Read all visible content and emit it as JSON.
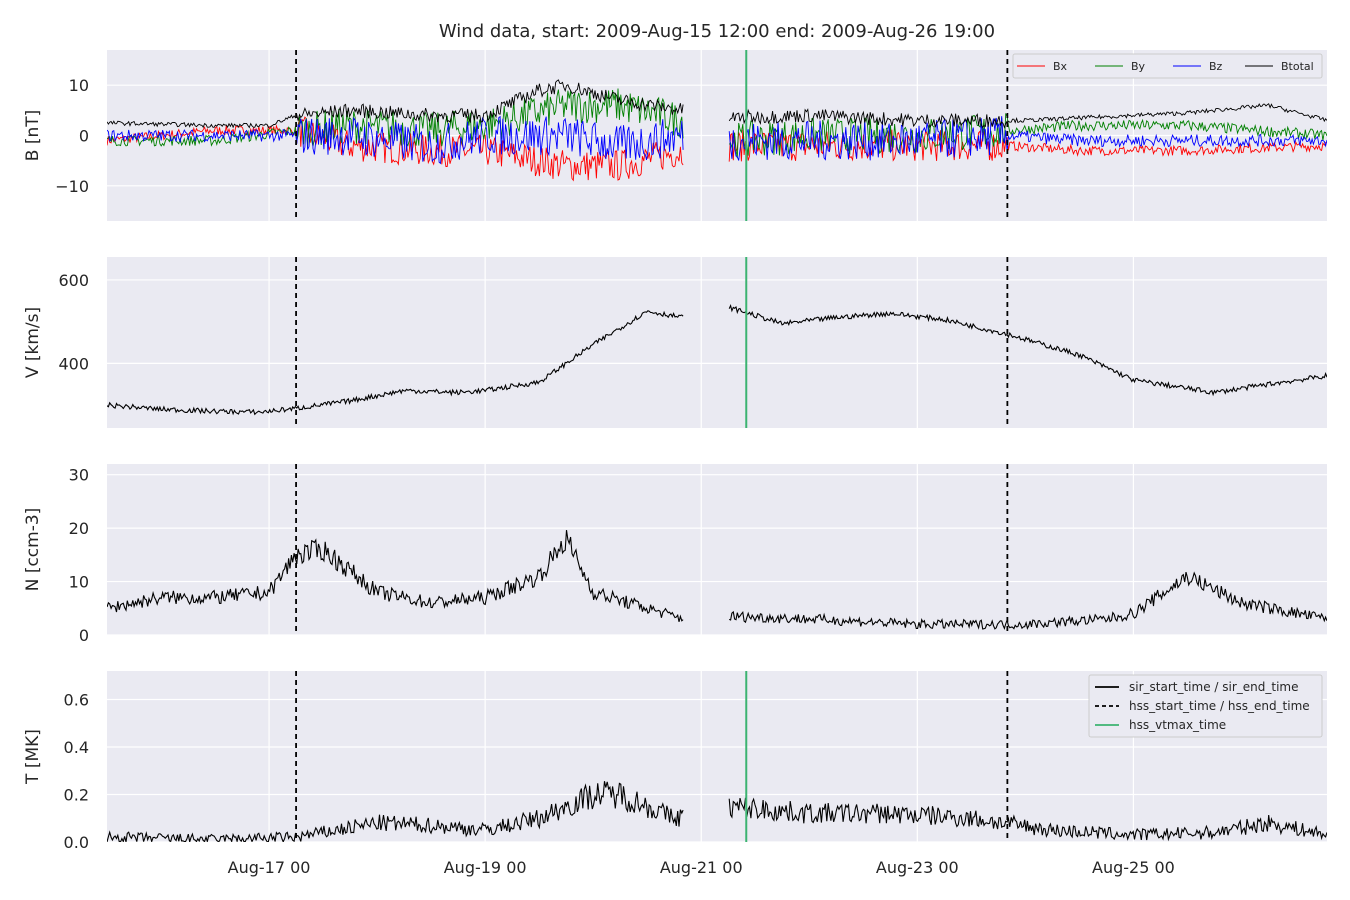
{
  "figure": {
    "title": "Wind data, start: 2009-Aug-15 12:00  end: 2009-Aug-26 19:00",
    "x_tick_labels": [
      "Aug-17 00",
      "Aug-19 00",
      "Aug-21 00",
      "Aug-23 00",
      "Aug-25 00"
    ]
  },
  "legend_top": [
    "Bx",
    "By",
    "Bz",
    "Btotal"
  ],
  "legend_bottom": [
    "sir_start_time / sir_end_time",
    "hss_start_time / hss_end_time",
    "hss_vtmax_time"
  ],
  "colors": {
    "Bx": "#ff0000",
    "By": "#008000",
    "Bz": "#0000ff",
    "Btotal": "#000000",
    "vtmax": "#3cb371",
    "axes_bg": "#eaeaf2",
    "grid": "#ffffff"
  },
  "chart_data": [
    {
      "type": "line",
      "panel": "B",
      "ylabel": "B [nT]",
      "ylim": [
        -17,
        17
      ],
      "yticks": [
        -10,
        0,
        10
      ],
      "y_tick_labels": [
        "−10",
        "0",
        "10"
      ],
      "x_range": [
        "2009-08-15 12:00",
        "2009-08-26 19:00"
      ],
      "data_gap": [
        "2009-08-20 20:00",
        "2009-08-21 06:00"
      ],
      "series": [
        {
          "name": "Bx",
          "x": [
            "2009-08-15 12:00",
            "2009-08-16 12:00",
            "2009-08-17 06:00",
            "2009-08-17 18:00",
            "2009-08-18 12:00",
            "2009-08-19 00:00",
            "2009-08-19 18:00",
            "2009-08-20 06:00",
            "2009-08-20 20:00",
            "2009-08-21 06:00",
            "2009-08-22 00:00",
            "2009-08-23 00:00",
            "2009-08-23 20:00",
            "2009-08-24 12:00",
            "2009-08-25 12:00",
            "2009-08-26 19:00"
          ],
          "values": [
            -1,
            1,
            1,
            -2,
            -3,
            -3,
            -6,
            -6,
            -3,
            -2,
            -2,
            -2,
            -2,
            -3,
            -3,
            -2
          ]
        },
        {
          "name": "By",
          "x": [
            "2009-08-15 12:00",
            "2009-08-16 12:00",
            "2009-08-17 06:00",
            "2009-08-17 18:00",
            "2009-08-18 12:00",
            "2009-08-19 00:00",
            "2009-08-19 18:00",
            "2009-08-20 06:00",
            "2009-08-20 20:00",
            "2009-08-21 06:00",
            "2009-08-22 00:00",
            "2009-08-23 00:00",
            "2009-08-23 20:00",
            "2009-08-24 12:00",
            "2009-08-25 12:00",
            "2009-08-26 19:00"
          ],
          "values": [
            -1,
            -1,
            1,
            2,
            1,
            2,
            6,
            6,
            3,
            -1,
            0,
            0,
            1,
            2,
            2,
            0
          ]
        },
        {
          "name": "Bz",
          "x": [
            "2009-08-15 12:00",
            "2009-08-16 12:00",
            "2009-08-17 06:00",
            "2009-08-17 18:00",
            "2009-08-18 12:00",
            "2009-08-19 00:00",
            "2009-08-19 18:00",
            "2009-08-20 06:00",
            "2009-08-20 20:00",
            "2009-08-21 06:00",
            "2009-08-22 00:00",
            "2009-08-23 00:00",
            "2009-08-23 20:00",
            "2009-08-24 12:00",
            "2009-08-25 12:00",
            "2009-08-26 19:00"
          ],
          "values": [
            0,
            0,
            0,
            0,
            -2,
            0,
            0,
            -2,
            0,
            -1,
            -1,
            -1,
            0,
            -1,
            -1,
            -1
          ]
        },
        {
          "name": "Btotal",
          "x": [
            "2009-08-15 12:00",
            "2009-08-16 12:00",
            "2009-08-17 00:00",
            "2009-08-17 06:00",
            "2009-08-17 18:00",
            "2009-08-18 12:00",
            "2009-08-19 00:00",
            "2009-08-19 12:00",
            "2009-08-19 18:00",
            "2009-08-20 06:00",
            "2009-08-20 20:00",
            "2009-08-21 06:00",
            "2009-08-22 00:00",
            "2009-08-23 00:00",
            "2009-08-24 00:00",
            "2009-08-25 12:00",
            "2009-08-26 06:00",
            "2009-08-26 19:00"
          ],
          "values": [
            2.5,
            2,
            2,
            4,
            5,
            4,
            4,
            9,
            10,
            7,
            5,
            3.5,
            4,
            3,
            3,
            4.5,
            6,
            3
          ]
        }
      ]
    },
    {
      "type": "line",
      "panel": "V",
      "ylabel": "V [km/s]",
      "ylim": [
        245,
        655
      ],
      "yticks": [
        400,
        600
      ],
      "y_tick_labels": [
        "400",
        "600"
      ],
      "data_gap": [
        "2009-08-20 20:00",
        "2009-08-21 06:00"
      ],
      "series": [
        {
          "name": "",
          "x": [
            "2009-08-15 12:00",
            "2009-08-16 00:00",
            "2009-08-16 12:00",
            "2009-08-16 22:00",
            "2009-08-17 06:00",
            "2009-08-17 18:00",
            "2009-08-18 06:00",
            "2009-08-18 18:00",
            "2009-08-19 00:00",
            "2009-08-19 12:00",
            "2009-08-20 00:00",
            "2009-08-20 12:00",
            "2009-08-20 20:00",
            "2009-08-21 06:00",
            "2009-08-21 18:00",
            "2009-08-22 06:00",
            "2009-08-22 18:00",
            "2009-08-23 06:00",
            "2009-08-23 20:00",
            "2009-08-24 12:00",
            "2009-08-25 00:00",
            "2009-08-25 18:00",
            "2009-08-26 06:00",
            "2009-08-26 19:00"
          ],
          "values": [
            300,
            290,
            285,
            283,
            292,
            310,
            335,
            330,
            335,
            355,
            445,
            525,
            510,
            535,
            495,
            510,
            520,
            505,
            470,
            420,
            360,
            330,
            350,
            370
          ]
        }
      ]
    },
    {
      "type": "line",
      "panel": "N",
      "ylabel": "N [ccm-3]",
      "ylim": [
        0,
        32
      ],
      "yticks": [
        0,
        10,
        20,
        30
      ],
      "y_tick_labels": [
        "0",
        "10",
        "20",
        "30"
      ],
      "data_gap": [
        "2009-08-20 20:00",
        "2009-08-21 06:00"
      ],
      "series": [
        {
          "name": "",
          "x": [
            "2009-08-15 12:00",
            "2009-08-16 00:00",
            "2009-08-16 12:00",
            "2009-08-17 00:00",
            "2009-08-17 06:00",
            "2009-08-17 12:00",
            "2009-08-18 00:00",
            "2009-08-18 12:00",
            "2009-08-19 00:00",
            "2009-08-19 12:00",
            "2009-08-19 18:00",
            "2009-08-20 00:00",
            "2009-08-20 12:00",
            "2009-08-20 20:00",
            "2009-08-21 06:00",
            "2009-08-22 00:00",
            "2009-08-23 00:00",
            "2009-08-24 00:00",
            "2009-08-24 18:00",
            "2009-08-25 00:00",
            "2009-08-25 12:00",
            "2009-08-26 00:00",
            "2009-08-26 19:00"
          ],
          "values": [
            5,
            7,
            7,
            8,
            15,
            16,
            8,
            6,
            7,
            11,
            18,
            8,
            5,
            3,
            3.5,
            3,
            2,
            2,
            3,
            4,
            11,
            6,
            3
          ]
        }
      ]
    },
    {
      "type": "line",
      "panel": "T",
      "ylabel": "T [MK]",
      "ylim": [
        0,
        0.72
      ],
      "yticks": [
        0.0,
        0.2,
        0.4,
        0.6
      ],
      "y_tick_labels": [
        "0.0",
        "0.2",
        "0.4",
        "0.6"
      ],
      "data_gap": [
        "2009-08-20 20:00",
        "2009-08-21 06:00"
      ],
      "series": [
        {
          "name": "",
          "x": [
            "2009-08-15 12:00",
            "2009-08-16 12:00",
            "2009-08-17 06:00",
            "2009-08-18 00:00",
            "2009-08-18 12:00",
            "2009-08-19 00:00",
            "2009-08-19 12:00",
            "2009-08-20 00:00",
            "2009-08-20 06:00",
            "2009-08-20 18:00",
            "2009-08-21 06:00",
            "2009-08-22 00:00",
            "2009-08-22 18:00",
            "2009-08-23 12:00",
            "2009-08-24 06:00",
            "2009-08-25 00:00",
            "2009-08-25 18:00",
            "2009-08-26 06:00",
            "2009-08-26 19:00"
          ],
          "values": [
            0.02,
            0.01,
            0.02,
            0.08,
            0.07,
            0.05,
            0.1,
            0.2,
            0.2,
            0.1,
            0.15,
            0.12,
            0.12,
            0.1,
            0.05,
            0.03,
            0.04,
            0.08,
            0.03
          ]
        }
      ]
    }
  ],
  "event_lines": {
    "hss_start_time": "2009-08-17 06:00",
    "hss_end_time": "2009-08-23 20:00",
    "hss_vtmax_time": "2009-08-21 10:00"
  }
}
